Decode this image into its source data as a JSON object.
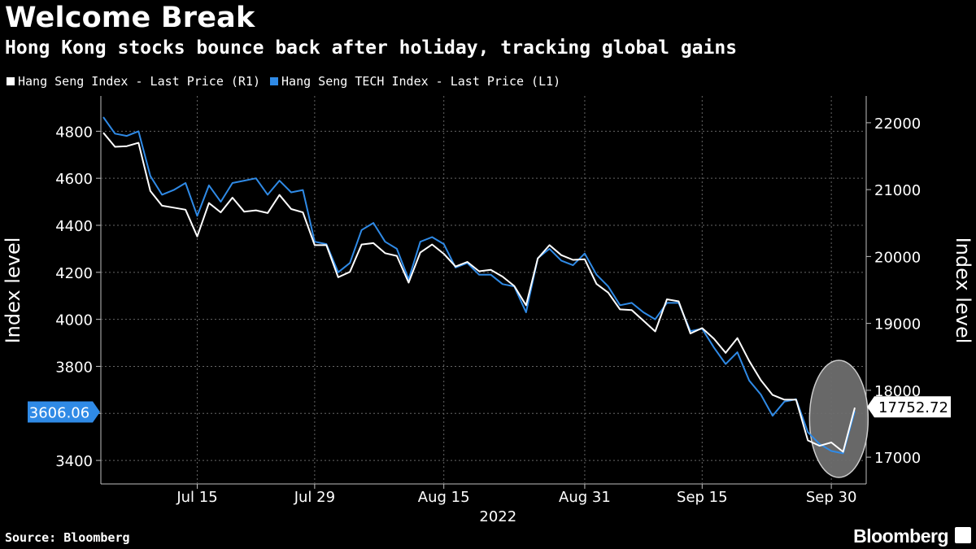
{
  "title": "Welcome Break",
  "subtitle": "Hong Kong stocks bounce back after holiday, tracking global gains",
  "source": "Source: Bloomberg",
  "brand": "Bloomberg",
  "colors": {
    "background": "#000000",
    "hsi": "#ffffff",
    "hstech": "#2f8ae6",
    "grid": "#666666",
    "highlight_fill": "#6e6e6e"
  },
  "chart_data": {
    "type": "line",
    "x_group_label": "2022",
    "x_ticks": [
      "Jul 15",
      "Jul 29",
      "Aug 15",
      "Aug 31",
      "Sep 15",
      "Sep 30"
    ],
    "left_axis": {
      "label": "Index level",
      "ticks": [
        "3400",
        "3600",
        "3800",
        "4000",
        "4200",
        "4400",
        "4600",
        "4800"
      ],
      "range": [
        3300,
        4950
      ]
    },
    "right_axis": {
      "label": "Index level",
      "ticks": [
        "17000",
        "18000",
        "19000",
        "20000",
        "21000",
        "22000"
      ],
      "range": [
        16600,
        22400
      ]
    },
    "last_value_left": "3606.06",
    "last_value_right": "17752.72",
    "grid": true,
    "legend_position": "top-left",
    "highlight": "ellipse around the last few sessions (post-holiday bounce)",
    "x_dates": [
      "Jul 5",
      "Jul 6",
      "Jul 7",
      "Jul 8",
      "Jul 11",
      "Jul 12",
      "Jul 13",
      "Jul 14",
      "Jul 15",
      "Jul 18",
      "Jul 19",
      "Jul 20",
      "Jul 21",
      "Jul 22",
      "Jul 25",
      "Jul 26",
      "Jul 27",
      "Jul 28",
      "Jul 29",
      "Aug 1",
      "Aug 2",
      "Aug 3",
      "Aug 4",
      "Aug 5",
      "Aug 8",
      "Aug 9",
      "Aug 10",
      "Aug 11",
      "Aug 12",
      "Aug 15",
      "Aug 16",
      "Aug 17",
      "Aug 18",
      "Aug 19",
      "Aug 22",
      "Aug 23",
      "Aug 24",
      "Aug 25",
      "Aug 26",
      "Aug 29",
      "Aug 30",
      "Aug 31",
      "Sep 1",
      "Sep 2",
      "Sep 5",
      "Sep 6",
      "Sep 7",
      "Sep 8",
      "Sep 9",
      "Sep 13",
      "Sep 14",
      "Sep 15",
      "Sep 16",
      "Sep 19",
      "Sep 20",
      "Sep 21",
      "Sep 22",
      "Sep 23",
      "Sep 26",
      "Sep 27",
      "Sep 28",
      "Sep 29",
      "Sep 30",
      "Oct 3",
      "Oct 5"
    ],
    "series": [
      {
        "name": "Hang Seng Index - Last Price (R1)",
        "axis": "right",
        "values": [
          21850,
          21640,
          21650,
          21700,
          20980,
          20760,
          20730,
          20700,
          20300,
          20800,
          20660,
          20880,
          20670,
          20690,
          20650,
          20920,
          20710,
          20660,
          20170,
          20170,
          19690,
          19770,
          20180,
          20200,
          20050,
          20010,
          19610,
          20060,
          20180,
          20040,
          19850,
          19920,
          19780,
          19800,
          19700,
          19560,
          19270,
          19970,
          20170,
          20020,
          19950,
          19960,
          19590,
          19460,
          19210,
          19200,
          19040,
          18880,
          19360,
          19330,
          18850,
          18930,
          18770,
          18560,
          18780,
          18440,
          18150,
          17930,
          17860,
          17860,
          17250,
          17170,
          17220,
          17080,
          17740
        ]
      },
      {
        "name": "Hang Seng TECH Index - Last Price (L1)",
        "axis": "left",
        "values": [
          4860,
          4790,
          4780,
          4800,
          4610,
          4530,
          4550,
          4580,
          4440,
          4570,
          4500,
          4580,
          4590,
          4600,
          4530,
          4590,
          4540,
          4550,
          4330,
          4320,
          4200,
          4240,
          4380,
          4410,
          4330,
          4300,
          4170,
          4330,
          4350,
          4320,
          4220,
          4240,
          4190,
          4190,
          4150,
          4140,
          4030,
          4260,
          4300,
          4250,
          4230,
          4280,
          4190,
          4140,
          4060,
          4070,
          4030,
          4000,
          4070,
          4070,
          3950,
          3960,
          3880,
          3810,
          3860,
          3740,
          3680,
          3590,
          3650,
          3660,
          3520,
          3470,
          3440,
          3430,
          3610
        ]
      }
    ]
  }
}
